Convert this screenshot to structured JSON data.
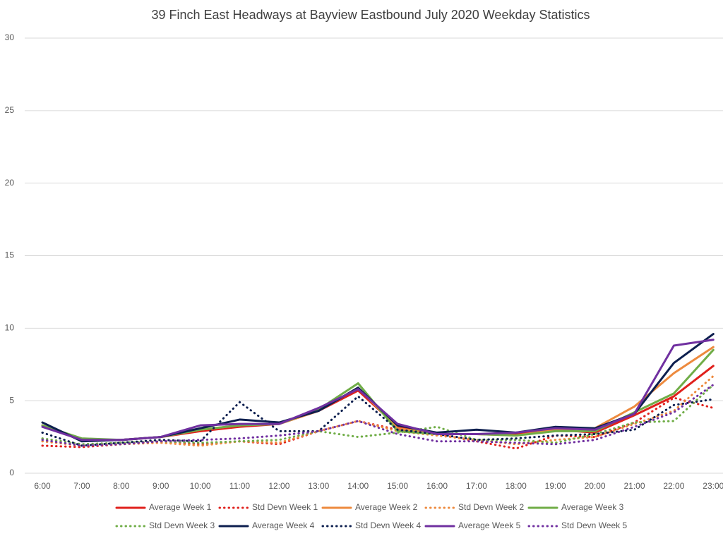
{
  "chart_data": {
    "type": "line",
    "title": "39 Finch East Headways at Bayview Eastbound July 2020 Weekday Statistics",
    "categories": [
      "6:00",
      "7:00",
      "8:00",
      "9:00",
      "10:00",
      "11:00",
      "12:00",
      "13:00",
      "14:00",
      "15:00",
      "16:00",
      "17:00",
      "18:00",
      "19:00",
      "20:00",
      "21:00",
      "22:00",
      "23:00"
    ],
    "ylim": [
      0,
      30
    ],
    "yticks": [
      0,
      5,
      10,
      15,
      20,
      25,
      30
    ],
    "grid": true,
    "legend": "bottom",
    "series": [
      {
        "name": "Average Week 1",
        "color": "#e0201c",
        "style": "solid",
        "values": [
          3.3,
          2.3,
          2.3,
          2.5,
          2.9,
          3.2,
          3.4,
          4.3,
          5.7,
          3.2,
          2.7,
          2.7,
          2.7,
          3.0,
          2.8,
          4.0,
          5.3,
          7.4
        ]
      },
      {
        "name": "Std Devn Week 1",
        "color": "#e0201c",
        "style": "dotted",
        "values": [
          1.9,
          1.8,
          2.0,
          2.2,
          2.0,
          2.2,
          2.0,
          2.9,
          3.6,
          3.0,
          2.7,
          2.2,
          1.7,
          2.6,
          2.5,
          3.5,
          5.2,
          4.5
        ]
      },
      {
        "name": "Average Week 2",
        "color": "#ed8a3e",
        "style": "solid",
        "values": [
          3.3,
          2.3,
          2.3,
          2.5,
          3.0,
          3.3,
          3.4,
          4.3,
          5.9,
          3.1,
          2.7,
          2.7,
          2.6,
          3.0,
          3.1,
          4.6,
          6.9,
          8.7
        ]
      },
      {
        "name": "Std Devn Week 2",
        "color": "#ed8a3e",
        "style": "dotted",
        "values": [
          2.2,
          1.9,
          2.0,
          2.1,
          1.9,
          2.2,
          2.1,
          2.9,
          3.6,
          2.9,
          2.6,
          2.3,
          2.0,
          2.3,
          2.5,
          3.4,
          4.3,
          6.7
        ]
      },
      {
        "name": "Average Week 3",
        "color": "#70ad47",
        "style": "solid",
        "values": [
          3.3,
          2.4,
          2.3,
          2.5,
          3.0,
          3.3,
          3.4,
          4.4,
          6.2,
          2.9,
          2.7,
          2.7,
          2.6,
          2.9,
          2.9,
          4.2,
          5.5,
          8.5
        ]
      },
      {
        "name": "Std Devn Week 3",
        "color": "#70ad47",
        "style": "dotted",
        "values": [
          2.4,
          2.0,
          2.1,
          2.2,
          2.1,
          2.2,
          2.3,
          2.9,
          2.5,
          2.8,
          3.2,
          2.3,
          2.3,
          2.1,
          2.7,
          3.5,
          3.6,
          6.1
        ]
      },
      {
        "name": "Average Week 4",
        "color": "#0d1f4f",
        "style": "solid",
        "values": [
          3.5,
          2.2,
          2.3,
          2.5,
          3.1,
          3.7,
          3.5,
          4.3,
          5.9,
          3.3,
          2.8,
          3.0,
          2.8,
          3.2,
          3.1,
          4.1,
          7.6,
          9.6
        ]
      },
      {
        "name": "Std Devn Week 4",
        "color": "#0d1f4f",
        "style": "dotted",
        "values": [
          2.8,
          1.9,
          2.1,
          2.3,
          2.2,
          4.9,
          2.9,
          2.9,
          5.3,
          3.0,
          2.7,
          2.3,
          2.4,
          2.6,
          2.7,
          3.0,
          4.7,
          5.1
        ]
      },
      {
        "name": "Average Week 5",
        "color": "#7030a0",
        "style": "solid",
        "values": [
          3.2,
          2.3,
          2.3,
          2.5,
          3.3,
          3.4,
          3.4,
          4.5,
          5.8,
          3.4,
          2.7,
          2.7,
          2.8,
          3.1,
          3.0,
          4.1,
          8.8,
          9.2
        ]
      },
      {
        "name": "Std Devn Week 5",
        "color": "#7030a0",
        "style": "dotted",
        "values": [
          2.3,
          1.9,
          2.0,
          2.2,
          2.3,
          2.4,
          2.6,
          2.9,
          3.6,
          2.7,
          2.2,
          2.2,
          2.1,
          2.0,
          2.3,
          3.2,
          4.2,
          6.1
        ]
      }
    ]
  }
}
